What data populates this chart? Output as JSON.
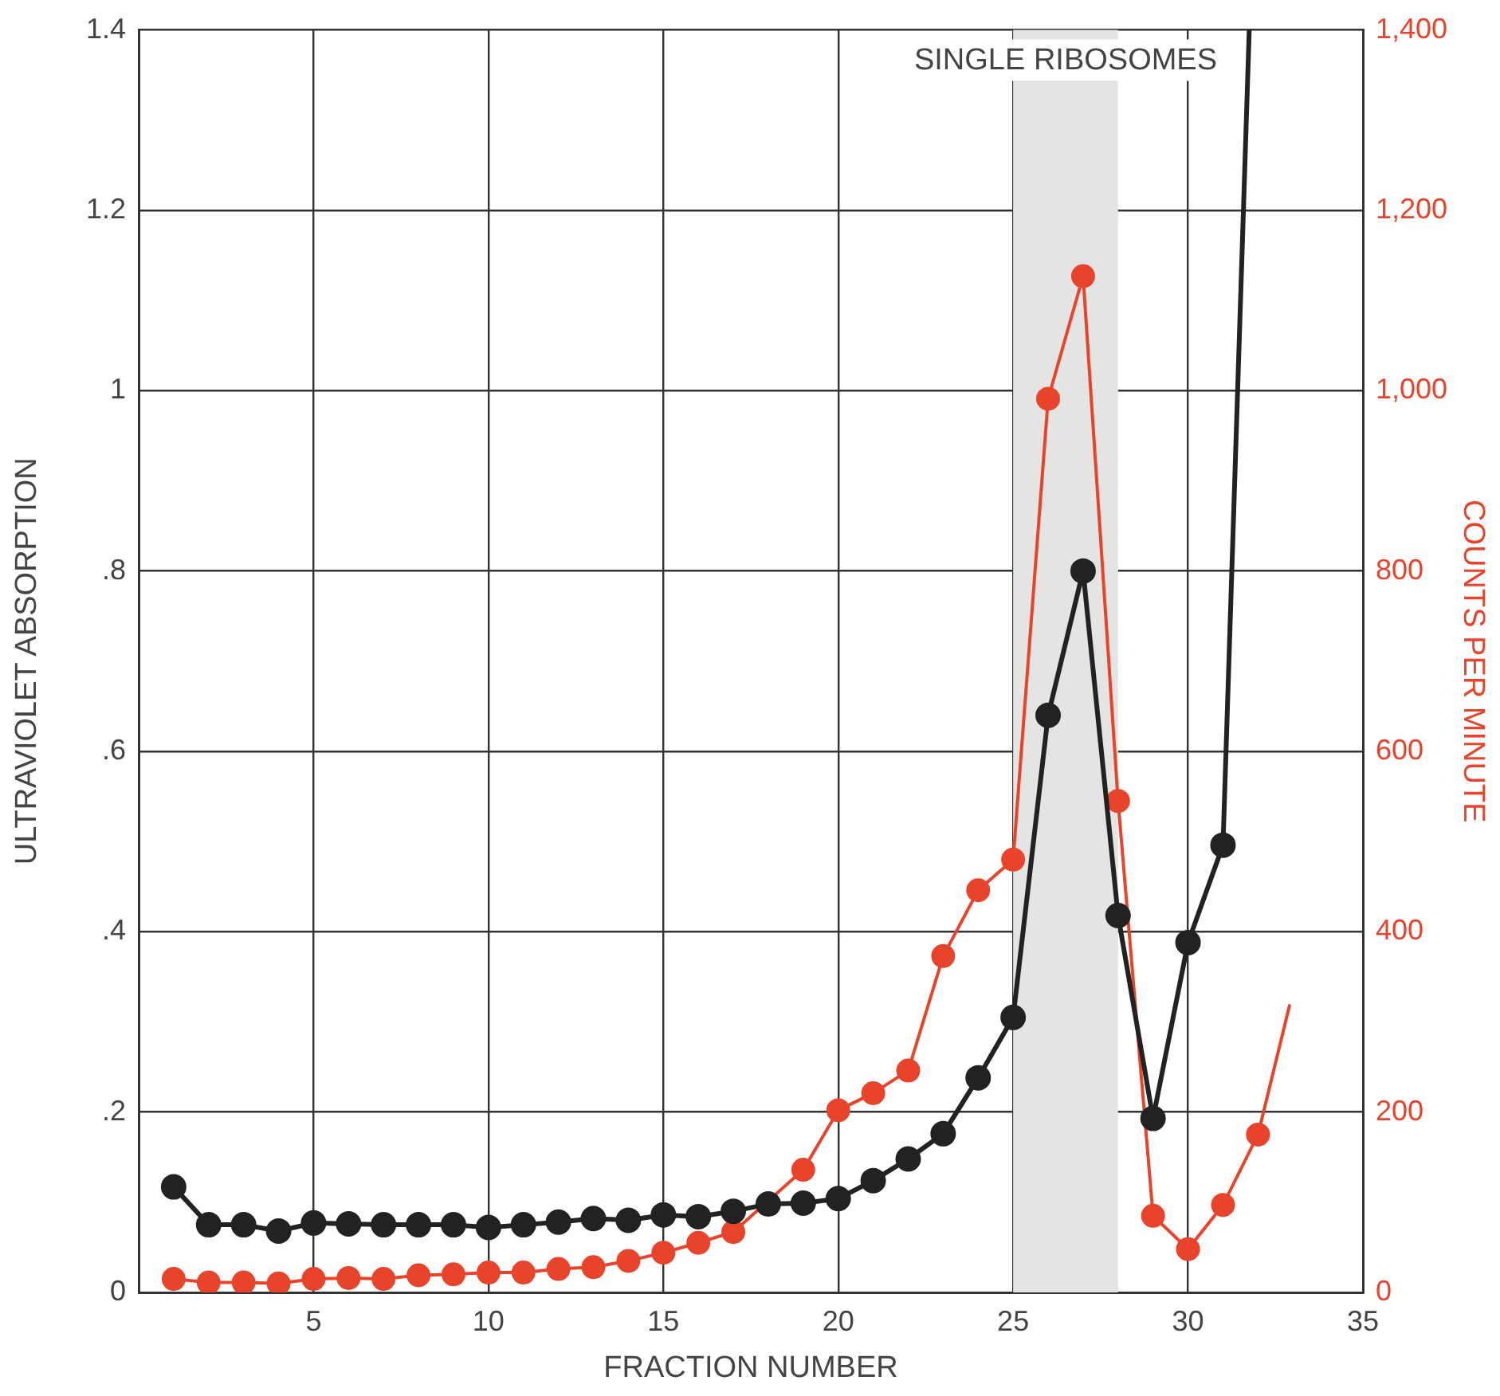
{
  "chart_data": {
    "type": "line",
    "xlabel": "FRACTION NUMBER",
    "ylabel": "ULTRAVIOLET ABSORPTION",
    "y2label": "COUNTS PER MINUTE",
    "x": [
      1,
      2,
      3,
      4,
      5,
      6,
      7,
      8,
      9,
      10,
      11,
      12,
      13,
      14,
      15,
      16,
      17,
      18,
      19,
      20,
      21,
      22,
      23,
      24,
      25,
      26,
      27,
      28,
      29,
      30,
      31,
      32
    ],
    "series": [
      {
        "color": "#222222",
        "values": [
          0.117,
          0.075,
          0.075,
          0.068,
          0.077,
          0.076,
          0.075,
          0.075,
          0.075,
          0.072,
          0.075,
          0.078,
          0.082,
          0.08,
          0.086,
          0.084,
          0.09,
          0.098,
          0.099,
          0.104,
          0.124,
          0.148,
          0.176,
          0.238,
          0.305,
          0.64,
          0.8,
          0.418,
          0.193,
          0.388,
          0.496,
          null
        ]
      },
      {
        "color": "#222222",
        "x": [
          31,
          31.75
        ],
        "values": [
          0.496,
          1.4
        ],
        "marker": "none"
      },
      {
        "color": "#e8442c",
        "axis": "y2",
        "values": [
          15,
          11,
          11,
          10,
          15,
          16,
          15,
          19,
          20,
          22,
          22,
          26,
          28,
          35,
          44,
          55,
          67,
          null,
          136,
          202,
          221,
          246,
          373,
          446,
          480,
          991,
          1127,
          545,
          85,
          48,
          97,
          175
        ]
      },
      {
        "color": "#e8442c",
        "axis": "y2",
        "x": [
          32,
          32.9
        ],
        "values": [
          175,
          318
        ],
        "marker": "none"
      }
    ],
    "xlim": [
      0,
      35
    ],
    "xticks": [
      5,
      10,
      15,
      20,
      25,
      30,
      35
    ],
    "ylim": [
      0,
      1.4
    ],
    "yticks": [
      0,
      {
        "value": 0.2,
        "label": ".2"
      },
      {
        "value": 0.4,
        "label": ".4"
      },
      {
        "value": 0.6,
        "label": ".6"
      },
      {
        "value": 0.8,
        "label": ".8"
      },
      1,
      1.2,
      1.4
    ],
    "y2lim": [
      0,
      1400
    ],
    "y2ticks": [
      0,
      200,
      400,
      600,
      800,
      {
        "value": 1000,
        "label": "1,000"
      },
      {
        "value": 1200,
        "label": "1,200"
      },
      {
        "value": 1400,
        "label": "1,400"
      }
    ],
    "bands": [
      {
        "axis": "x",
        "from": 25,
        "to": 28,
        "label": "SINGLE RIBOSOMES",
        "color": "#e4e4e4"
      }
    ],
    "grid": true,
    "legend": false,
    "marker": "circle",
    "line_style": "solid"
  }
}
